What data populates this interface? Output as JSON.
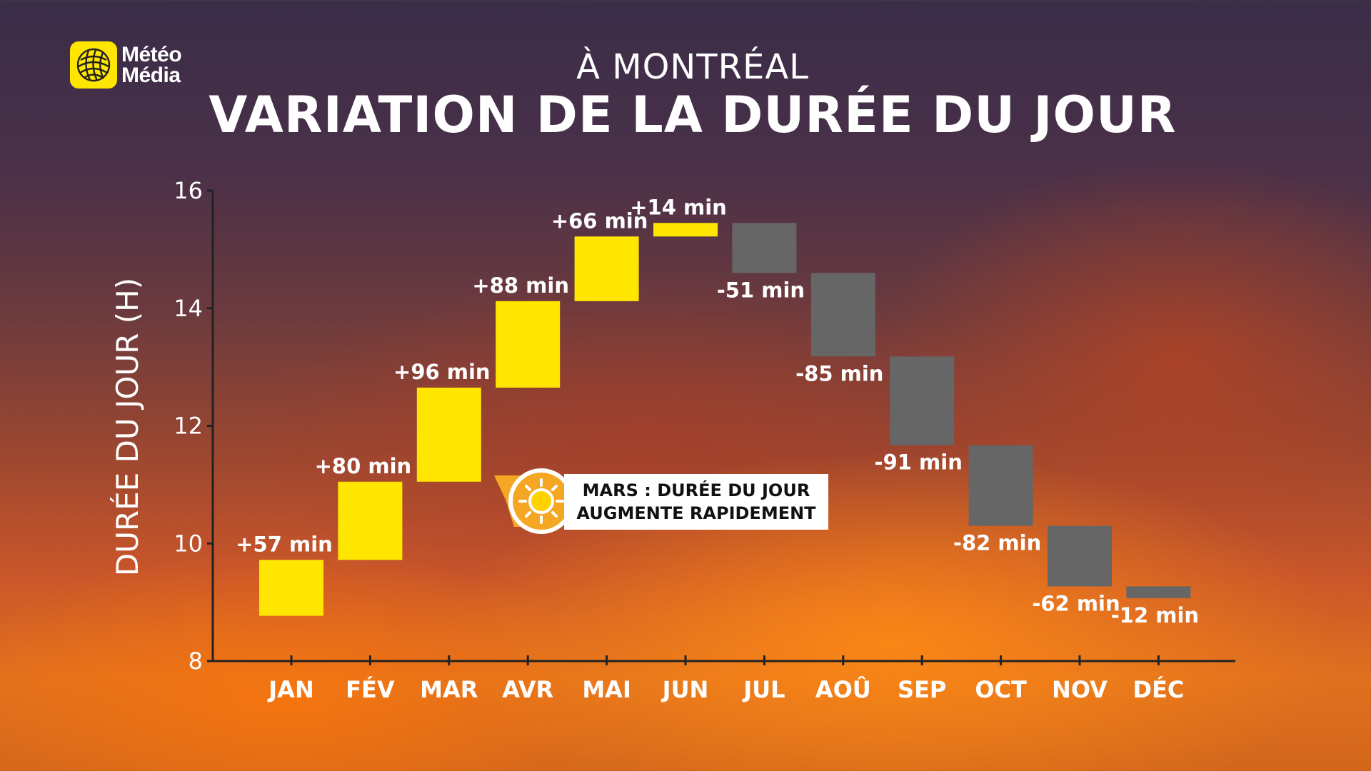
{
  "logo": {
    "line1": "Météo",
    "line2": "Média",
    "icon": "globe-icon",
    "color": "#ffe600"
  },
  "subtitle": "À MONTRÉAL",
  "title": "VARIATION DE LA DURÉE DU JOUR",
  "callout": {
    "line1": "MARS : DURÉE DU JOUR",
    "line2": "AUGMENTE RAPIDEMENT",
    "icon": "sun-icon"
  },
  "colors": {
    "increase": "#ffe600",
    "decrease": "#666666",
    "axis": "#222222"
  },
  "chart_data": {
    "type": "bar",
    "subtype": "floating-waterfall",
    "ylabel": "DURÉE DU JOUR (H)",
    "xlabel": "",
    "ylim": [
      8,
      16
    ],
    "yticks": [
      8,
      10,
      12,
      14,
      16
    ],
    "categories": [
      "JAN",
      "FÉV",
      "MAR",
      "AVR",
      "MAI",
      "JUN",
      "JUL",
      "AOÛ",
      "SEP",
      "OCT",
      "NOV",
      "DÉC"
    ],
    "ranges": [
      [
        8.77,
        9.72
      ],
      [
        9.72,
        11.05
      ],
      [
        11.05,
        12.65
      ],
      [
        12.65,
        14.12
      ],
      [
        14.12,
        15.22
      ],
      [
        15.22,
        15.45
      ],
      [
        15.45,
        14.6
      ],
      [
        14.6,
        13.18
      ],
      [
        13.18,
        11.67
      ],
      [
        11.67,
        10.3
      ],
      [
        10.3,
        9.27
      ],
      [
        9.27,
        9.07
      ]
    ],
    "labels": [
      "+57 min",
      "+80 min",
      "+96 min",
      "+88 min",
      "+66 min",
      "+14 min",
      "-51 min",
      "-85 min",
      "-91 min",
      "-82 min",
      "-62 min",
      "-12 min"
    ],
    "grid": false,
    "legend": "none"
  }
}
